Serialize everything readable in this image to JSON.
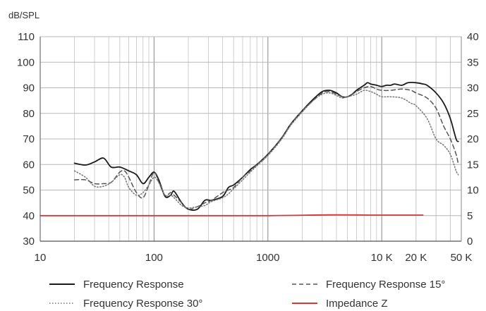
{
  "chart_data": {
    "type": "line",
    "ylabel_left": "dB/SPL",
    "x_scale": "log",
    "xlim": [
      10,
      50000
    ],
    "ylim_left": [
      30,
      110
    ],
    "ylim_right": [
      0,
      40
    ],
    "grid": true,
    "legend_placement": "bottom",
    "x_tick_labels": [
      {
        "value": 10,
        "label": "10"
      },
      {
        "value": 100,
        "label": "100"
      },
      {
        "value": 1000,
        "label": "1000"
      },
      {
        "value": 10000,
        "label": "10 K"
      },
      {
        "value": 20000,
        "label": "20 K"
      },
      {
        "value": 50000,
        "label": "50 K"
      }
    ],
    "y_left_ticks": [
      30,
      40,
      50,
      60,
      70,
      80,
      90,
      100,
      110
    ],
    "y_right_ticks": [
      0,
      5,
      10,
      15,
      20,
      25,
      30,
      35,
      40
    ],
    "series": [
      {
        "name": "Frequency Response",
        "axis": "left",
        "color": "#1a1a1a",
        "style": "solid",
        "points": [
          [
            20,
            60.5
          ],
          [
            25,
            59.8
          ],
          [
            30,
            61
          ],
          [
            36,
            62.5
          ],
          [
            42,
            59
          ],
          [
            50,
            59
          ],
          [
            60,
            57.5
          ],
          [
            70,
            56
          ],
          [
            80,
            52.5
          ],
          [
            90,
            55
          ],
          [
            100,
            57
          ],
          [
            110,
            54
          ],
          [
            125,
            47.5
          ],
          [
            140,
            48
          ],
          [
            150,
            49.5
          ],
          [
            175,
            45
          ],
          [
            200,
            42.5
          ],
          [
            240,
            42.5
          ],
          [
            280,
            46
          ],
          [
            320,
            46
          ],
          [
            400,
            47.5
          ],
          [
            450,
            51
          ],
          [
            500,
            52
          ],
          [
            600,
            55
          ],
          [
            700,
            58
          ],
          [
            800,
            60
          ],
          [
            1000,
            64
          ],
          [
            1300,
            70
          ],
          [
            1600,
            76
          ],
          [
            2000,
            81
          ],
          [
            2500,
            85.5
          ],
          [
            3000,
            88.5
          ],
          [
            3500,
            89
          ],
          [
            4000,
            88
          ],
          [
            4500,
            86.5
          ],
          [
            5000,
            86.5
          ],
          [
            5500,
            87.5
          ],
          [
            6000,
            89
          ],
          [
            7000,
            91
          ],
          [
            7500,
            92
          ],
          [
            8000,
            91.5
          ],
          [
            9000,
            91
          ],
          [
            10000,
            90.5
          ],
          [
            11000,
            91
          ],
          [
            12000,
            91
          ],
          [
            13000,
            91.5
          ],
          [
            15000,
            91
          ],
          [
            17000,
            92
          ],
          [
            20000,
            92
          ],
          [
            23000,
            91.5
          ],
          [
            25000,
            91
          ],
          [
            30000,
            88
          ],
          [
            35000,
            84
          ],
          [
            40000,
            78
          ],
          [
            45000,
            70
          ],
          [
            47000,
            69
          ]
        ]
      },
      {
        "name": "Frequency Response 15°",
        "axis": "left",
        "color": "#555555",
        "style": "dashed",
        "points": [
          [
            20,
            54
          ],
          [
            25,
            54
          ],
          [
            30,
            52.5
          ],
          [
            36,
            52.5
          ],
          [
            42,
            53
          ],
          [
            50,
            57
          ],
          [
            55,
            57.5
          ],
          [
            60,
            55
          ],
          [
            70,
            49
          ],
          [
            80,
            47
          ],
          [
            90,
            52
          ],
          [
            100,
            57
          ],
          [
            110,
            53
          ],
          [
            125,
            48
          ],
          [
            140,
            49
          ],
          [
            150,
            48
          ],
          [
            175,
            45
          ],
          [
            200,
            42.5
          ],
          [
            240,
            43.5
          ],
          [
            280,
            45
          ],
          [
            320,
            46
          ],
          [
            400,
            49
          ],
          [
            450,
            50
          ],
          [
            500,
            51
          ],
          [
            600,
            55
          ],
          [
            700,
            57.5
          ],
          [
            800,
            60
          ],
          [
            1000,
            64
          ],
          [
            1300,
            70
          ],
          [
            1600,
            76
          ],
          [
            2000,
            81
          ],
          [
            2500,
            85
          ],
          [
            3000,
            88
          ],
          [
            3500,
            88.5
          ],
          [
            4000,
            87.5
          ],
          [
            4500,
            86.5
          ],
          [
            5000,
            86.5
          ],
          [
            6000,
            88.5
          ],
          [
            7000,
            90
          ],
          [
            8000,
            90.5
          ],
          [
            9000,
            89.5
          ],
          [
            10000,
            89
          ],
          [
            12000,
            89
          ],
          [
            15000,
            89.5
          ],
          [
            18000,
            89
          ],
          [
            20000,
            88
          ],
          [
            25000,
            86
          ],
          [
            30000,
            82
          ],
          [
            35000,
            75
          ],
          [
            40000,
            70
          ],
          [
            45000,
            64
          ],
          [
            47000,
            60
          ]
        ]
      },
      {
        "name": "Frequency Response 30°",
        "axis": "left",
        "color": "#777777",
        "style": "dotted",
        "points": [
          [
            20,
            57.5
          ],
          [
            25,
            55
          ],
          [
            30,
            51.5
          ],
          [
            36,
            51.5
          ],
          [
            42,
            53
          ],
          [
            50,
            56
          ],
          [
            55,
            55
          ],
          [
            60,
            51
          ],
          [
            70,
            48
          ],
          [
            80,
            49
          ],
          [
            90,
            52
          ],
          [
            100,
            55
          ],
          [
            110,
            53
          ],
          [
            125,
            48
          ],
          [
            140,
            48
          ],
          [
            150,
            47
          ],
          [
            175,
            44
          ],
          [
            200,
            43
          ],
          [
            240,
            43.5
          ],
          [
            280,
            44
          ],
          [
            320,
            45.5
          ],
          [
            400,
            47
          ],
          [
            450,
            48.5
          ],
          [
            500,
            50.5
          ],
          [
            600,
            54
          ],
          [
            700,
            57
          ],
          [
            800,
            59.5
          ],
          [
            1000,
            63.5
          ],
          [
            1300,
            69.5
          ],
          [
            1600,
            75.5
          ],
          [
            2000,
            80.5
          ],
          [
            2500,
            85
          ],
          [
            3000,
            87.5
          ],
          [
            3500,
            88
          ],
          [
            4000,
            87
          ],
          [
            4500,
            86
          ],
          [
            5000,
            86.5
          ],
          [
            6000,
            87.5
          ],
          [
            7000,
            89
          ],
          [
            8000,
            88.5
          ],
          [
            9000,
            87.5
          ],
          [
            10000,
            86.5
          ],
          [
            12000,
            86.5
          ],
          [
            15000,
            86
          ],
          [
            18000,
            84
          ],
          [
            20000,
            83
          ],
          [
            25000,
            78
          ],
          [
            30000,
            70
          ],
          [
            35000,
            67.5
          ],
          [
            40000,
            64
          ],
          [
            45000,
            57.5
          ],
          [
            47000,
            56
          ]
        ]
      },
      {
        "name": "Impedance Z",
        "axis": "left",
        "color": "#d23a3a",
        "style": "solid",
        "points": [
          [
            10,
            40
          ],
          [
            100,
            40
          ],
          [
            1000,
            40
          ],
          [
            3500,
            40.3
          ],
          [
            10000,
            40.2
          ],
          [
            20000,
            40.2
          ],
          [
            23000,
            40.2
          ]
        ]
      }
    ]
  }
}
